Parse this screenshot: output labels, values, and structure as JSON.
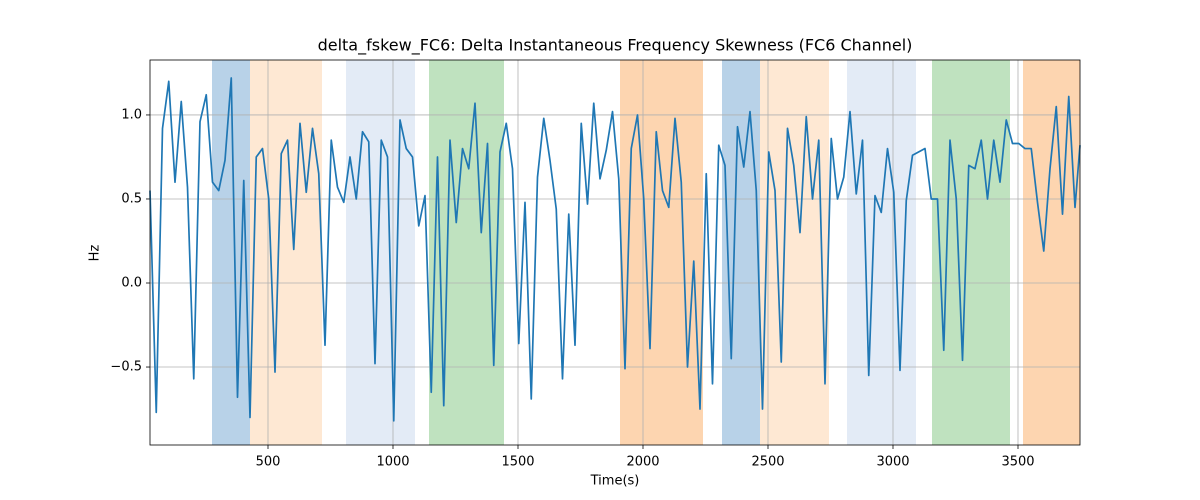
{
  "chart_data": {
    "type": "line",
    "title": "delta_fskew_FC6: Delta Instantaneous Frequency Skewness (FC6 Channel)",
    "xlabel": "Time(s)",
    "ylabel": "Hz",
    "xlim": [
      28,
      3748
    ],
    "ylim": [
      -0.964,
      1.327
    ],
    "xticks": [
      500,
      1000,
      1500,
      2000,
      2500,
      3000,
      3500
    ],
    "yticks": [
      {
        "value": -0.5,
        "label": "−0.5"
      },
      {
        "value": 0,
        "label": "0.0"
      },
      0.5,
      {
        "value": 1,
        "label": "1.0"
      }
    ],
    "grid": true,
    "spans": [
      {
        "start": 276,
        "end": 428,
        "color": "#b8d2e8"
      },
      {
        "start": 428,
        "end": 716,
        "color": "#fee8d3"
      },
      {
        "start": 812,
        "end": 1088,
        "color": "#e3ebf6"
      },
      {
        "start": 1144,
        "end": 1444,
        "color": "#bfe2bf"
      },
      {
        "start": 1908,
        "end": 2240,
        "color": "#fdd5b0"
      },
      {
        "start": 2316,
        "end": 2468,
        "color": "#b8d2e8"
      },
      {
        "start": 2468,
        "end": 2744,
        "color": "#fee8d3"
      },
      {
        "start": 2816,
        "end": 3092,
        "color": "#e3ebf6"
      },
      {
        "start": 3156,
        "end": 3468,
        "color": "#bfe2bf"
      },
      {
        "start": 3520,
        "end": 3748,
        "color": "#fdd5b0"
      }
    ],
    "x": [
      28,
      53,
      78,
      103,
      128,
      153,
      178,
      203,
      228,
      253,
      278,
      303,
      328,
      353,
      378,
      403,
      428,
      453,
      478,
      503,
      528,
      553,
      578,
      603,
      628,
      653,
      678,
      703,
      728,
      753,
      778,
      803,
      828,
      853,
      878,
      903,
      928,
      953,
      978,
      1003,
      1028,
      1053,
      1078,
      1103,
      1128,
      1153,
      1178,
      1203,
      1228,
      1253,
      1278,
      1303,
      1328,
      1353,
      1378,
      1403,
      1428,
      1453,
      1478,
      1503,
      1528,
      1553,
      1578,
      1603,
      1628,
      1653,
      1678,
      1703,
      1728,
      1753,
      1778,
      1803,
      1828,
      1853,
      1878,
      1903,
      1928,
      1953,
      1978,
      2003,
      2028,
      2053,
      2078,
      2103,
      2128,
      2153,
      2178,
      2203,
      2228,
      2253,
      2278,
      2303,
      2328,
      2353,
      2378,
      2403,
      2428,
      2453,
      2478,
      2503,
      2528,
      2553,
      2578,
      2603,
      2628,
      2653,
      2678,
      2703,
      2728,
      2753,
      2778,
      2803,
      2828,
      2853,
      2878,
      2903,
      2928,
      2953,
      2978,
      3003,
      3028,
      3053,
      3078,
      3103,
      3128,
      3153,
      3178,
      3203,
      3228,
      3253,
      3278,
      3303,
      3328,
      3353,
      3378,
      3403,
      3428,
      3453,
      3478,
      3503,
      3528,
      3553,
      3578,
      3603,
      3628,
      3653,
      3678,
      3703,
      3728,
      3748
    ],
    "series": [
      {
        "name": "delta_fskew_FC6",
        "color": "#1f77b4",
        "values": [
          0.55,
          -0.77,
          0.92,
          1.2,
          0.6,
          1.08,
          0.57,
          -0.57,
          0.96,
          1.12,
          0.6,
          0.55,
          0.73,
          1.22,
          -0.68,
          0.61,
          -0.8,
          0.75,
          0.8,
          0.5,
          -0.53,
          0.77,
          0.85,
          0.2,
          0.95,
          0.54,
          0.92,
          0.65,
          -0.37,
          0.85,
          0.57,
          0.48,
          0.75,
          0.5,
          0.9,
          0.84,
          -0.48,
          0.85,
          0.75,
          -0.82,
          0.97,
          0.8,
          0.75,
          0.34,
          0.52,
          -0.65,
          0.75,
          -0.73,
          0.85,
          0.36,
          0.8,
          0.68,
          1.07,
          0.3,
          0.83,
          -0.49,
          0.78,
          0.95,
          0.68,
          -0.36,
          0.48,
          -0.69,
          0.63,
          0.98,
          0.73,
          0.44,
          -0.57,
          0.41,
          -0.37,
          0.95,
          0.47,
          1.07,
          0.62,
          0.79,
          1.02,
          0.62,
          -0.51,
          0.8,
          1.0,
          0.5,
          -0.39,
          0.9,
          0.55,
          0.45,
          0.98,
          0.6,
          -0.5,
          0.13,
          -0.75,
          0.65,
          -0.6,
          0.82,
          0.7,
          -0.45,
          0.93,
          0.69,
          1.02,
          0.55,
          -0.75,
          0.78,
          0.55,
          -0.47,
          0.92,
          0.7,
          0.3,
          0.99,
          0.5,
          0.85,
          -0.6,
          0.86,
          0.5,
          0.63,
          1.02,
          0.53,
          0.85,
          -0.55,
          0.52,
          0.42,
          0.8,
          0.54,
          -0.52,
          0.49,
          0.76,
          0.78,
          0.8,
          0.5,
          0.5,
          -0.4,
          0.85,
          0.5,
          -0.46,
          0.7,
          0.68,
          0.85,
          0.5,
          0.85,
          0.6,
          0.97,
          0.83,
          0.83,
          0.8,
          0.8,
          0.48,
          0.19,
          0.68,
          1.05,
          0.41,
          1.11,
          0.45,
          0.82
        ]
      }
    ]
  }
}
